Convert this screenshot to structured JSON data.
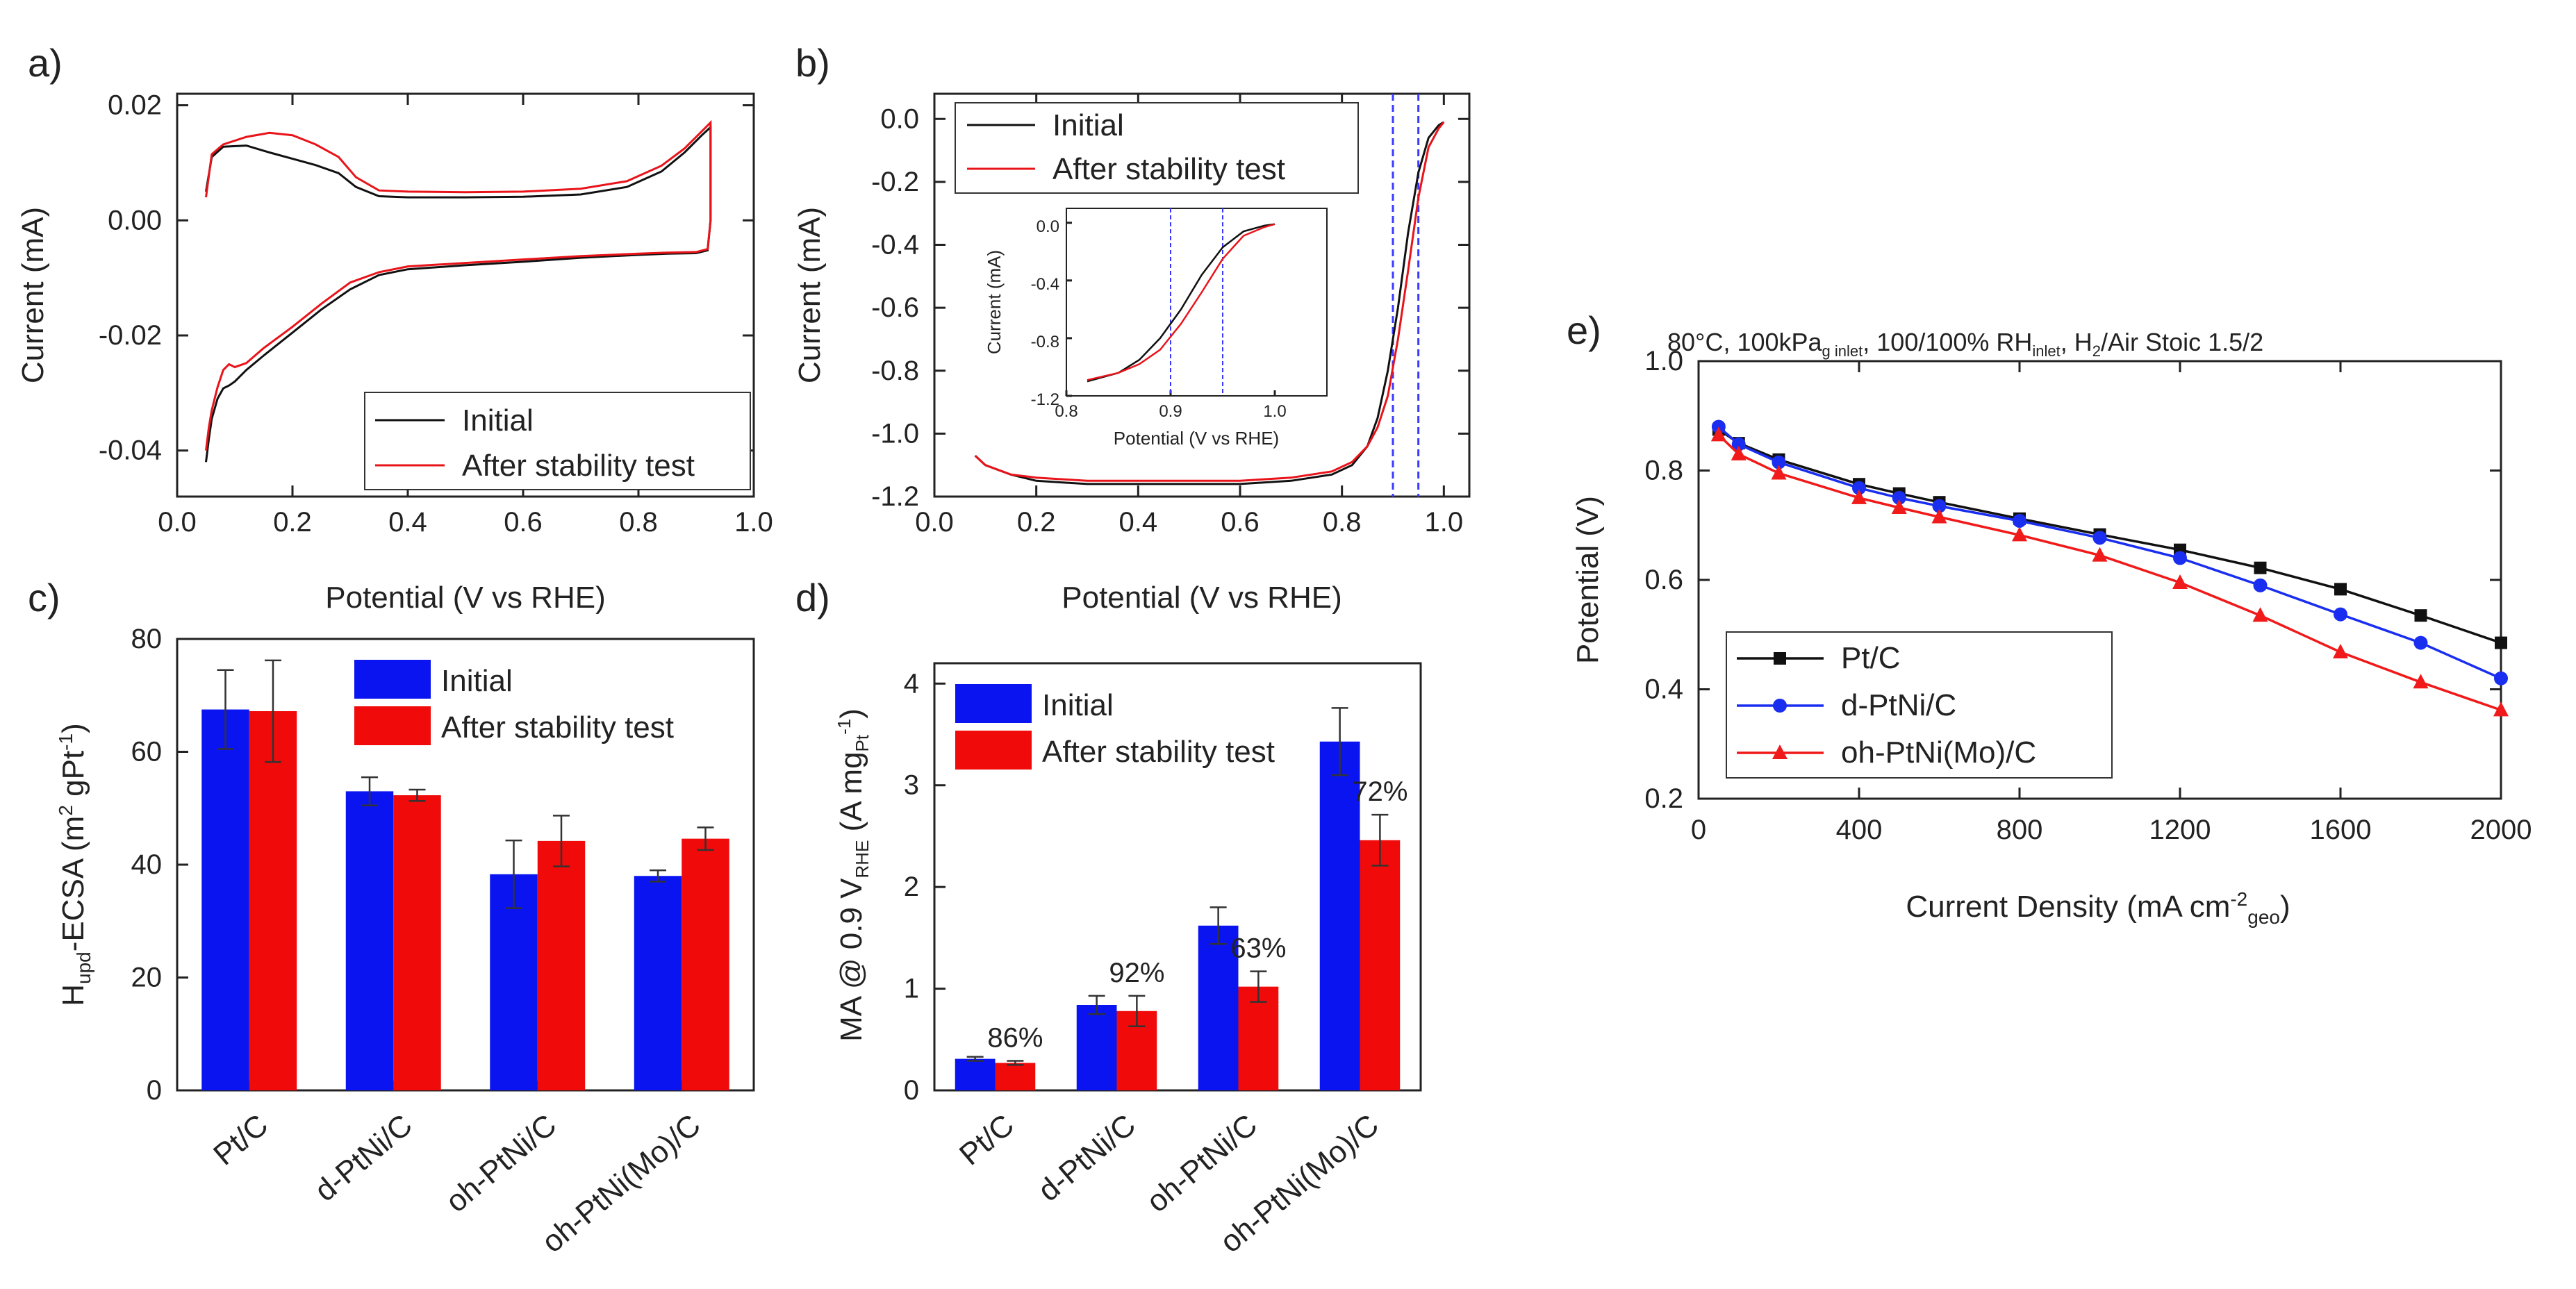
{
  "figure": {
    "title": ""
  },
  "colors": {
    "initial_cv": "#111111",
    "after_cv": "#e8141a",
    "initial_bar": "#0a14f0",
    "after_bar": "#f00a0a",
    "ptc": "#111111",
    "dptni": "#1a2ef0",
    "ohptnimo": "#f01a1a",
    "vline": "#3a3aff"
  },
  "chart_data": [
    {
      "panel": "a)",
      "type": "line",
      "xlabel": "Potential (V vs RHE)",
      "ylabel": "Current (mA)",
      "xlim": [
        0.0,
        1.0
      ],
      "ylim": [
        -0.048,
        0.022
      ],
      "xticks": [
        "0.0",
        "0.2",
        "0.4",
        "0.6",
        "0.8",
        "1.0"
      ],
      "yticks": [
        "0.02",
        "0.00",
        "-0.02",
        "-0.04"
      ],
      "ytick_values": [
        0.02,
        0.0,
        -0.02,
        -0.04
      ],
      "legend": [
        "Initial",
        "After stability test"
      ],
      "series": [
        {
          "name": "Initial",
          "x": [
            0.05,
            0.06,
            0.08,
            0.12,
            0.16,
            0.2,
            0.24,
            0.28,
            0.31,
            0.35,
            0.4,
            0.5,
            0.6,
            0.7,
            0.78,
            0.84,
            0.88,
            0.91,
            0.925,
            0.925,
            0.92,
            0.9,
            0.85,
            0.8,
            0.7,
            0.6,
            0.5,
            0.4,
            0.35,
            0.3,
            0.25,
            0.2,
            0.15,
            0.12,
            0.1,
            0.09,
            0.08,
            0.07,
            0.06,
            0.055,
            0.05
          ],
          "y": [
            0.005,
            0.011,
            0.0128,
            0.013,
            0.0118,
            0.0107,
            0.0096,
            0.0082,
            0.0058,
            0.0042,
            0.004,
            0.004,
            0.0041,
            0.0045,
            0.0058,
            0.0085,
            0.0118,
            0.0148,
            0.0162,
            0.0,
            -0.0052,
            -0.0057,
            -0.0058,
            -0.006,
            -0.0065,
            -0.0072,
            -0.0078,
            -0.0085,
            -0.0095,
            -0.012,
            -0.0155,
            -0.0195,
            -0.0235,
            -0.026,
            -0.028,
            -0.0287,
            -0.0292,
            -0.031,
            -0.0345,
            -0.038,
            -0.042
          ]
        },
        {
          "name": "After stability test",
          "x": [
            0.05,
            0.06,
            0.08,
            0.12,
            0.16,
            0.2,
            0.24,
            0.28,
            0.31,
            0.35,
            0.4,
            0.5,
            0.6,
            0.7,
            0.78,
            0.84,
            0.88,
            0.91,
            0.925,
            0.925,
            0.92,
            0.9,
            0.85,
            0.8,
            0.7,
            0.6,
            0.5,
            0.4,
            0.35,
            0.3,
            0.25,
            0.2,
            0.15,
            0.12,
            0.1,
            0.09,
            0.08,
            0.07,
            0.06,
            0.055,
            0.05
          ],
          "y": [
            0.004,
            0.0115,
            0.0132,
            0.0145,
            0.0152,
            0.0148,
            0.0132,
            0.011,
            0.0075,
            0.0052,
            0.005,
            0.0049,
            0.005,
            0.0055,
            0.0068,
            0.0095,
            0.0125,
            0.0155,
            0.017,
            0.0,
            -0.005,
            -0.0055,
            -0.0056,
            -0.0058,
            -0.0062,
            -0.0068,
            -0.0074,
            -0.008,
            -0.009,
            -0.0108,
            -0.0145,
            -0.0185,
            -0.0222,
            -0.0248,
            -0.0255,
            -0.025,
            -0.026,
            -0.029,
            -0.033,
            -0.036,
            -0.04
          ]
        }
      ]
    },
    {
      "panel": "b)",
      "type": "line",
      "xlabel": "Potential (V vs RHE)",
      "ylabel": "Current (mA)",
      "xlim": [
        0.0,
        1.05
      ],
      "ylim": [
        -1.2,
        0.08
      ],
      "xticks": [
        "0.0",
        "0.2",
        "0.4",
        "0.6",
        "0.8",
        "1.0"
      ],
      "yticks": [
        "0.0",
        "-0.2",
        "-0.4",
        "-0.6",
        "-0.8",
        "-1.0",
        "-1.2"
      ],
      "ytick_values": [
        0.0,
        -0.2,
        -0.4,
        -0.6,
        -0.8,
        -1.0,
        -1.2
      ],
      "legend": [
        "Initial",
        "After stability test"
      ],
      "vlines": [
        0.9,
        0.95
      ],
      "series": [
        {
          "name": "Initial",
          "x": [
            0.08,
            0.1,
            0.15,
            0.2,
            0.3,
            0.4,
            0.5,
            0.6,
            0.7,
            0.78,
            0.82,
            0.85,
            0.87,
            0.89,
            0.91,
            0.93,
            0.95,
            0.97,
            0.99,
            1.0
          ],
          "y": [
            -1.07,
            -1.1,
            -1.13,
            -1.15,
            -1.16,
            -1.16,
            -1.16,
            -1.16,
            -1.15,
            -1.13,
            -1.1,
            -1.04,
            -0.95,
            -0.8,
            -0.6,
            -0.36,
            -0.17,
            -0.06,
            -0.02,
            -0.01
          ]
        },
        {
          "name": "After stability test",
          "x": [
            0.08,
            0.1,
            0.15,
            0.2,
            0.3,
            0.4,
            0.5,
            0.6,
            0.7,
            0.78,
            0.82,
            0.85,
            0.87,
            0.89,
            0.91,
            0.93,
            0.95,
            0.97,
            0.99,
            1.0
          ],
          "y": [
            -1.07,
            -1.1,
            -1.13,
            -1.14,
            -1.15,
            -1.15,
            -1.15,
            -1.15,
            -1.14,
            -1.12,
            -1.09,
            -1.04,
            -0.98,
            -0.88,
            -0.7,
            -0.48,
            -0.25,
            -0.09,
            -0.03,
            -0.01
          ]
        }
      ],
      "inset": {
        "xlabel": "Potential (V vs RHE)",
        "ylabel": "Current (mA)",
        "xlim": [
          0.8,
          1.05
        ],
        "ylim": [
          -1.2,
          0.1
        ],
        "xticks": [
          "0.8",
          "0.9",
          "1.0"
        ],
        "xtick_values": [
          0.8,
          0.9,
          1.0
        ],
        "yticks": [
          "0.0",
          "-0.4",
          "-0.8",
          "-1.2"
        ],
        "ytick_values": [
          0.0,
          -0.4,
          -0.8,
          -1.2
        ],
        "vlines": [
          0.9,
          0.95
        ]
      }
    },
    {
      "panel": "c)",
      "type": "bar",
      "xlabel": "",
      "ylabel": "H_upd-ECSA (m² gPt⁻¹)",
      "ylabel_parts": {
        "main": "H",
        "sub": "upd",
        "mid": "-ECSA (m",
        "sup1": "2",
        "mid2": " gPt",
        "sup2": "-1",
        "end": ")"
      },
      "categories": [
        "Pt/C",
        "d-PtNi/C",
        "oh-PtNi/C",
        "oh-PtNi(Mo)/C"
      ],
      "ylim": [
        0,
        80
      ],
      "yticks": [
        "0",
        "20",
        "40",
        "60",
        "80"
      ],
      "ytick_values": [
        0,
        20,
        40,
        60,
        80
      ],
      "legend": [
        "Initial",
        "After stability test"
      ],
      "series": [
        {
          "name": "Initial",
          "values": [
            67.5,
            53,
            38.3,
            38
          ],
          "errors": [
            7,
            2.5,
            6,
            1
          ]
        },
        {
          "name": "After stability test",
          "values": [
            67.2,
            52.3,
            44.2,
            44.6
          ],
          "errors": [
            9,
            1,
            4.5,
            2
          ]
        }
      ]
    },
    {
      "panel": "d)",
      "type": "bar",
      "xlabel": "",
      "ylabel": "MA @ 0.9 V_RHE (A mg_Pt⁻¹)",
      "ylabel_parts": {
        "main": "MA @ 0.9 V",
        "sub": "RHE",
        "mid": " (A mg",
        "sub2": "Pt",
        "sup": "-1",
        "end": ")"
      },
      "categories": [
        "Pt/C",
        "d-PtNi/C",
        "oh-PtNi/C",
        "oh-PtNi(Mo)/C"
      ],
      "ylim": [
        0,
        4.2
      ],
      "yticks": [
        "0",
        "1",
        "2",
        "3",
        "4"
      ],
      "ytick_values": [
        0,
        1,
        2,
        3,
        4
      ],
      "legend": [
        "Initial",
        "After stability test"
      ],
      "annotations": [
        "86%",
        "92%",
        "63%",
        "72%"
      ],
      "series": [
        {
          "name": "Initial",
          "values": [
            0.31,
            0.84,
            1.62,
            3.43
          ],
          "errors": [
            0.02,
            0.09,
            0.18,
            0.33
          ]
        },
        {
          "name": "After stability test",
          "values": [
            0.27,
            0.78,
            1.02,
            2.46
          ],
          "errors": [
            0.02,
            0.15,
            0.15,
            0.25
          ]
        }
      ]
    },
    {
      "panel": "e)",
      "type": "line",
      "title": "80°C, 100kPa_g inlet, 100/100% RH_inlet, H₂/Air Stoic 1.5/2",
      "title_parts": {
        "a": "80°C, 100kPa",
        "b": "g inlet",
        "c": ", 100/100% RH",
        "d": "inlet",
        "e": ", H",
        "f": "2",
        "g": "/Air Stoic 1.5/2"
      },
      "xlabel": "Current Density (mA cm⁻²_geo)",
      "xlabel_parts": {
        "main": "Current Density (mA cm",
        "sup": "-2",
        "sub": "geo",
        "end": ")"
      },
      "ylabel": "Potential (V)",
      "xlim": [
        0,
        2000
      ],
      "ylim": [
        0.2,
        1.0
      ],
      "xticks": [
        "0",
        "400",
        "800",
        "1200",
        "1600",
        "2000"
      ],
      "xtick_values": [
        0,
        400,
        800,
        1200,
        1600,
        2000
      ],
      "yticks": [
        "0.2",
        "0.4",
        "0.6",
        "0.8",
        "1.0"
      ],
      "ytick_values": [
        0.2,
        0.4,
        0.6,
        0.8,
        1.0
      ],
      "legend": [
        "Pt/C",
        "d-PtNi/C",
        "oh-PtNi(Mo)/C"
      ],
      "series": [
        {
          "name": "Pt/C",
          "marker": "square",
          "x": [
            50,
            100,
            200,
            400,
            500,
            600,
            800,
            1000,
            1200,
            1400,
            1600,
            1800,
            2000
          ],
          "y": [
            0.875,
            0.85,
            0.82,
            0.775,
            0.758,
            0.742,
            0.712,
            0.683,
            0.655,
            0.622,
            0.583,
            0.535,
            0.485
          ]
        },
        {
          "name": "d-PtNi/C",
          "marker": "circle",
          "x": [
            50,
            100,
            200,
            400,
            500,
            600,
            800,
            1000,
            1200,
            1400,
            1600,
            1800,
            2000
          ],
          "y": [
            0.88,
            0.848,
            0.815,
            0.768,
            0.75,
            0.735,
            0.708,
            0.677,
            0.64,
            0.59,
            0.537,
            0.485,
            0.42
          ]
        },
        {
          "name": "oh-PtNi(Mo)/C",
          "marker": "triangle",
          "x": [
            50,
            100,
            200,
            400,
            500,
            600,
            800,
            1000,
            1200,
            1400,
            1600,
            1800,
            2000
          ],
          "y": [
            0.865,
            0.83,
            0.795,
            0.75,
            0.732,
            0.715,
            0.682,
            0.645,
            0.595,
            0.535,
            0.468,
            0.413,
            0.362
          ]
        }
      ]
    }
  ]
}
